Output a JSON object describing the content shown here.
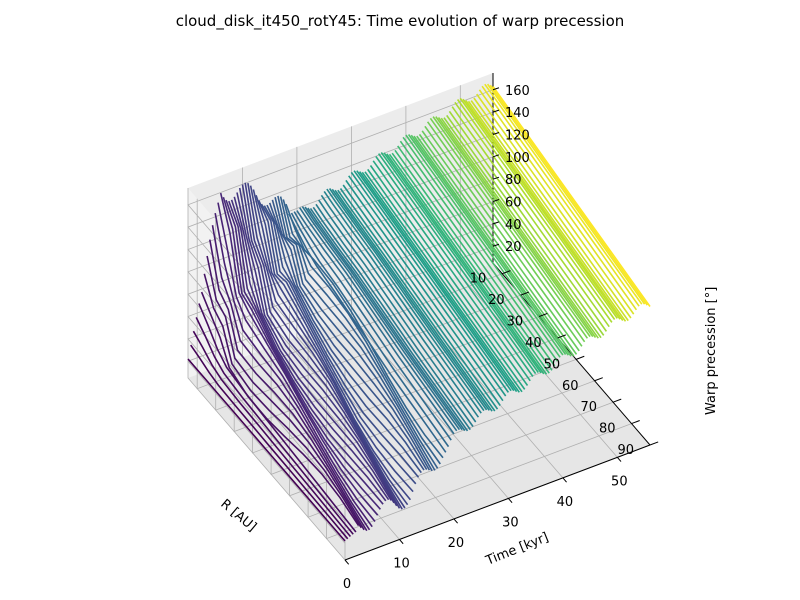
{
  "chart_data": {
    "type": "line",
    "projection": "3d",
    "title": "cloud_disk_it450_rotY45: Time evolution of warp precession",
    "xlabel": "R [AU]",
    "ylabel": "Time [kyr]",
    "zlabel": "Warp precession [°]",
    "xlim": [
      5,
      90
    ],
    "ylim": [
      0,
      56
    ],
    "zlim": [
      5,
      175
    ],
    "xticks": [
      "10",
      "20",
      "30",
      "40",
      "50",
      "60",
      "70",
      "80",
      "90"
    ],
    "yticks": [
      "0",
      "10",
      "20",
      "30",
      "40",
      "50"
    ],
    "zticks": [
      "20",
      "40",
      "60",
      "80",
      "100",
      "120",
      "140",
      "160"
    ],
    "colormap": "viridis",
    "grid": true,
    "series_description": "Warp precession angle vs radius, one curve per snapshot, colored by time",
    "series": [
      {
        "time": 0,
        "R": [
          5,
          10,
          15,
          20,
          30,
          40,
          50,
          60,
          70,
          80,
          90
        ],
        "precession": [
          22,
          22,
          22,
          22,
          22,
          22,
          22,
          22,
          22,
          22,
          22
        ]
      },
      {
        "time": 6,
        "R": [
          5,
          10,
          15,
          20,
          30,
          40,
          50,
          60,
          70,
          80,
          90
        ],
        "precession": [
          160,
          130,
          95,
          75,
          65,
          60,
          55,
          50,
          45,
          40,
          35
        ]
      },
      {
        "time": 12,
        "R": [
          5,
          10,
          15,
          20,
          30,
          40,
          50,
          60,
          70,
          80,
          90
        ],
        "precession": [
          150,
          125,
          100,
          85,
          75,
          68,
          62,
          55,
          50,
          45,
          40
        ]
      },
      {
        "time": 20,
        "R": [
          5,
          10,
          15,
          20,
          30,
          40,
          50,
          60,
          70,
          80,
          90
        ],
        "precession": [
          115,
          112,
          110,
          108,
          105,
          100,
          95,
          90,
          86,
          82,
          78
        ]
      },
      {
        "time": 30,
        "R": [
          5,
          10,
          15,
          20,
          30,
          40,
          50,
          60,
          70,
          80,
          90
        ],
        "precession": [
          130,
          128,
          126,
          124,
          120,
          116,
          112,
          108,
          104,
          100,
          96
        ]
      },
      {
        "time": 40,
        "R": [
          5,
          10,
          15,
          20,
          30,
          40,
          50,
          60,
          70,
          80,
          90
        ],
        "precession": [
          145,
          143,
          141,
          139,
          135,
          131,
          127,
          123,
          119,
          115,
          111
        ]
      },
      {
        "time": 50,
        "R": [
          5,
          10,
          15,
          20,
          30,
          40,
          50,
          60,
          70,
          80,
          90
        ],
        "precession": [
          160,
          158,
          156,
          154,
          150,
          146,
          142,
          138,
          134,
          130,
          126
        ]
      },
      {
        "time": 56,
        "R": [
          5,
          10,
          15,
          20,
          30,
          40,
          50,
          60,
          70,
          80,
          90
        ],
        "precession": [
          165,
          163,
          161,
          159,
          155,
          151,
          147,
          143,
          139,
          135,
          131
        ]
      }
    ]
  }
}
